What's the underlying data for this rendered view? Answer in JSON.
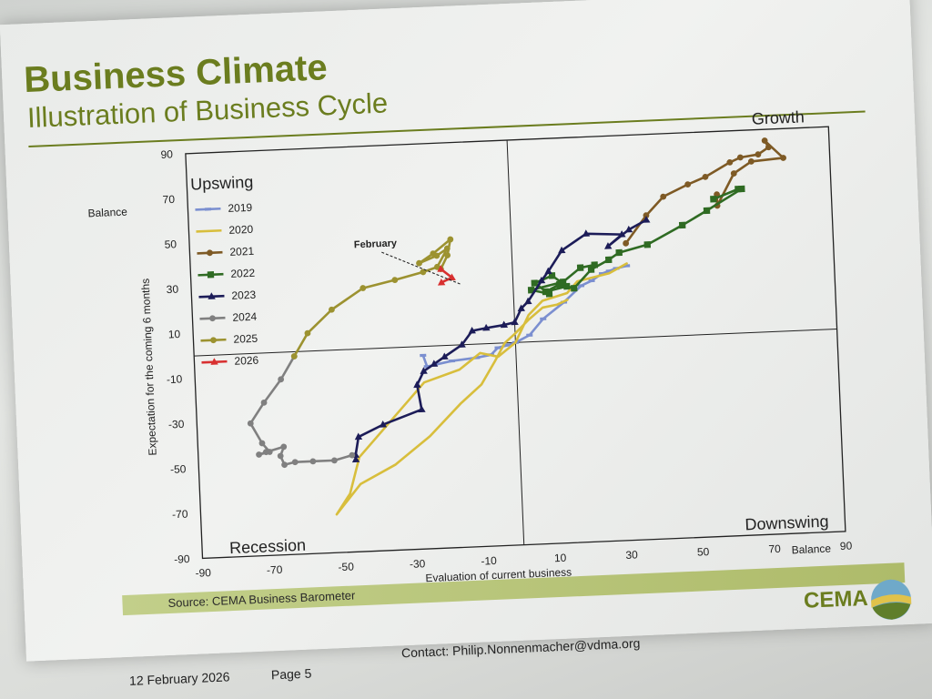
{
  "slide": {
    "title": "Business Climate",
    "subtitle": "Illustration of Business Cycle",
    "source": "Source: CEMA Business Barometer",
    "logo_text": "CEMA",
    "date": "12 February 2026",
    "page": "Page 5",
    "contact": "Contact: Philip.Nonnenmacher@vdma.org"
  },
  "colors": {
    "accent": "#6b7d1f",
    "2019": "#7b8fd0",
    "2020": "#d8be3c",
    "2021": "#7e5a25",
    "2022": "#2f6b23",
    "2023": "#1c1c58",
    "2024": "#808080",
    "2025": "#9c9230",
    "2026": "#d83030"
  },
  "chart_data": {
    "type": "line",
    "xlabel": "Evaluation of current business",
    "ylabel": "Expectation for the coming 6 months",
    "x_unit_label": "Balance",
    "y_unit_label": "Balance",
    "xlim": [
      -90,
      90
    ],
    "ylim": [
      -90,
      90
    ],
    "x_ticks": [
      "-90",
      "-70",
      "-50",
      "-30",
      "-10",
      "10",
      "30",
      "50",
      "70",
      "90"
    ],
    "y_ticks": [
      "-90",
      "-70",
      "-50",
      "-30",
      "-10",
      "10",
      "30",
      "50",
      "70",
      "90"
    ],
    "quadrant_labels": {
      "top_left": "Upswing",
      "top_right": "Growth",
      "bottom_left": "Recession",
      "bottom_right": "Downswing"
    },
    "annotation": {
      "text": "February",
      "x": -14,
      "y": 26
    },
    "legend_position": "top-left",
    "grid": false,
    "series": [
      {
        "name": "2019",
        "marker": "dash",
        "points": [
          [
            -26,
            -4
          ],
          [
            -25,
            -9
          ],
          [
            -18,
            -7
          ],
          [
            -11,
            -6
          ],
          [
            -7,
            -5
          ],
          [
            -5,
            -2
          ],
          [
            -2,
            -1
          ],
          [
            0,
            0
          ],
          [
            4,
            3
          ],
          [
            8,
            10
          ],
          [
            14,
            17
          ],
          [
            19,
            24
          ],
          [
            22,
            26
          ],
          [
            25,
            29
          ],
          [
            27,
            30
          ],
          [
            29,
            31
          ],
          [
            32,
            32
          ]
        ]
      },
      {
        "name": "2020",
        "marker": "line",
        "points": [
          [
            32,
            33
          ],
          [
            27,
            29
          ],
          [
            18,
            26
          ],
          [
            15,
            21
          ],
          [
            8,
            18
          ],
          [
            4,
            12
          ],
          [
            0,
            0
          ],
          [
            -5,
            -6
          ],
          [
            -10,
            -4
          ],
          [
            -16,
            -11
          ],
          [
            -26,
            -16
          ],
          [
            -45,
            -48
          ],
          [
            -48,
            -64
          ],
          [
            -52,
            -73
          ],
          [
            -45,
            -60
          ],
          [
            -35,
            -52
          ],
          [
            -25,
            -40
          ],
          [
            -16,
            -26
          ],
          [
            -10,
            -18
          ],
          [
            -6,
            -8
          ],
          [
            -3,
            0
          ],
          [
            0,
            4
          ],
          [
            4,
            10
          ],
          [
            8,
            15
          ],
          [
            12,
            16
          ],
          [
            15,
            18
          ]
        ]
      },
      {
        "name": "2021",
        "marker": "circle",
        "points": [
          [
            32,
            42
          ],
          [
            38,
            54
          ],
          [
            43,
            62
          ],
          [
            50,
            67
          ],
          [
            55,
            70
          ],
          [
            62,
            76
          ],
          [
            65,
            78
          ],
          [
            70,
            79
          ],
          [
            73,
            82
          ],
          [
            72,
            85
          ],
          [
            77,
            77
          ],
          [
            68,
            76
          ],
          [
            63,
            71
          ],
          [
            58,
            57
          ],
          [
            58,
            62
          ]
        ]
      },
      {
        "name": "2022",
        "marker": "square",
        "points": [
          [
            57,
            60
          ],
          [
            64,
            64
          ],
          [
            65,
            64
          ],
          [
            55,
            55
          ],
          [
            48,
            49
          ],
          [
            38,
            41
          ],
          [
            30,
            38
          ],
          [
            27,
            35
          ],
          [
            22,
            31
          ],
          [
            17,
            23
          ],
          [
            13,
            25
          ],
          [
            9,
            22
          ],
          [
            15,
            24
          ],
          [
            11,
            29
          ],
          [
            6,
            26
          ],
          [
            10,
            21
          ],
          [
            5,
            23
          ],
          [
            14,
            26
          ],
          [
            19,
            32
          ],
          [
            23,
            33
          ]
        ]
      },
      {
        "name": "2023",
        "marker": "triangle",
        "points": [
          [
            38,
            52
          ],
          [
            33,
            48
          ],
          [
            27,
            41
          ],
          [
            31,
            46
          ],
          [
            21,
            47
          ],
          [
            14,
            40
          ],
          [
            10,
            31
          ],
          [
            8,
            27
          ],
          [
            4,
            18
          ],
          [
            2,
            15
          ],
          [
            0,
            9
          ],
          [
            -3,
            8
          ],
          [
            -8,
            7
          ],
          [
            -12,
            6
          ],
          [
            -15,
            0
          ],
          [
            -20,
            -5
          ],
          [
            -23,
            -8
          ],
          [
            -26,
            -11
          ],
          [
            -28,
            -17
          ],
          [
            -27,
            -28
          ],
          [
            -38,
            -34
          ],
          [
            -45,
            -39
          ],
          [
            -46,
            -47
          ],
          [
            -46,
            -49
          ]
        ]
      },
      {
        "name": "2024",
        "marker": "circle",
        "points": [
          [
            -47,
            -47
          ],
          [
            -52,
            -49
          ],
          [
            -58,
            -49
          ],
          [
            -63,
            -49
          ],
          [
            -66,
            -50
          ],
          [
            -67,
            -46
          ],
          [
            -66,
            -42
          ],
          [
            -71,
            -44
          ],
          [
            -73,
            -45
          ],
          [
            -70,
            -44
          ],
          [
            -72,
            -40
          ],
          [
            -75,
            -31
          ],
          [
            -71,
            -22
          ],
          [
            -66,
            -12
          ],
          [
            -62,
            -2
          ]
        ]
      },
      {
        "name": "2025",
        "marker": "circle",
        "points": [
          [
            -62,
            -2
          ],
          [
            -58,
            8
          ],
          [
            -51,
            18
          ],
          [
            -42,
            27
          ],
          [
            -33,
            30
          ],
          [
            -25,
            33
          ],
          [
            -21,
            35
          ],
          [
            -18,
            43
          ],
          [
            -21,
            40
          ],
          [
            -26,
            37
          ],
          [
            -22,
            41
          ],
          [
            -17,
            47
          ],
          [
            -18,
            40
          ],
          [
            -20,
            34
          ]
        ]
      },
      {
        "name": "2026",
        "marker": "triangle",
        "points": [
          [
            -20,
            34
          ],
          [
            -17,
            30
          ],
          [
            -20,
            28
          ]
        ]
      }
    ]
  }
}
